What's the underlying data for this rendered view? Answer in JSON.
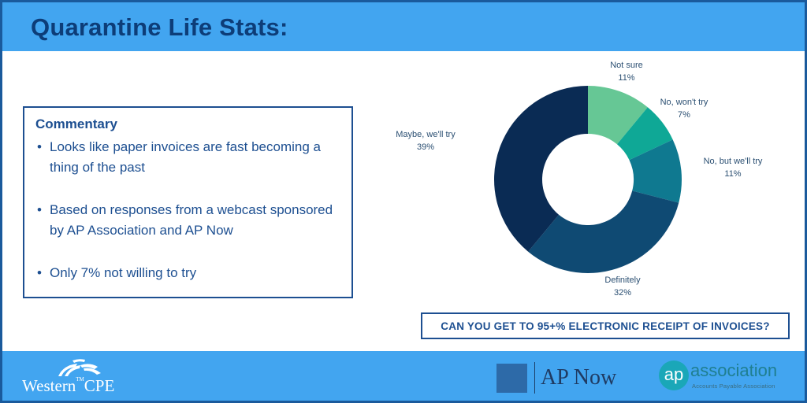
{
  "header": {
    "title": "Quarantine Life Stats:"
  },
  "commentary": {
    "heading": "Commentary",
    "bullets": [
      "Looks like paper invoices are fast becoming a thing of the past",
      "Based on responses from a webcast sponsored by AP Association and AP Now",
      "Only 7% not willing to try"
    ]
  },
  "chart_data": {
    "type": "pie",
    "style": "donut",
    "slices": [
      {
        "label": "Not sure",
        "value": 11,
        "display": "11%",
        "color": "#66c795"
      },
      {
        "label": "No, won't try",
        "value": 7,
        "display": "7%",
        "color": "#0fa896"
      },
      {
        "label": "No, but we'll try",
        "value": 11,
        "display": "11%",
        "color": "#0f7990"
      },
      {
        "label": "Definitely",
        "value": 32,
        "display": "32%",
        "color": "#0f4a73"
      },
      {
        "label": "Maybe, we'll try",
        "value": 39,
        "display": "39%",
        "color": "#0a2b54"
      }
    ]
  },
  "callout": {
    "text": "CAN YOU GET TO 95+% ELECTRONIC RECEIPT OF INVOICES?"
  },
  "logos": {
    "western": {
      "text": "Western",
      "tm": "TM",
      "suffix": "CPE"
    },
    "apnow": {
      "text": "AP Now"
    },
    "apassoc": {
      "ap": "ap",
      "word": "association",
      "tagline": "Accounts Payable Association"
    }
  },
  "colors": {
    "band": "#42a5f0",
    "title": "#0d3d78",
    "border": "#1d4f91"
  }
}
